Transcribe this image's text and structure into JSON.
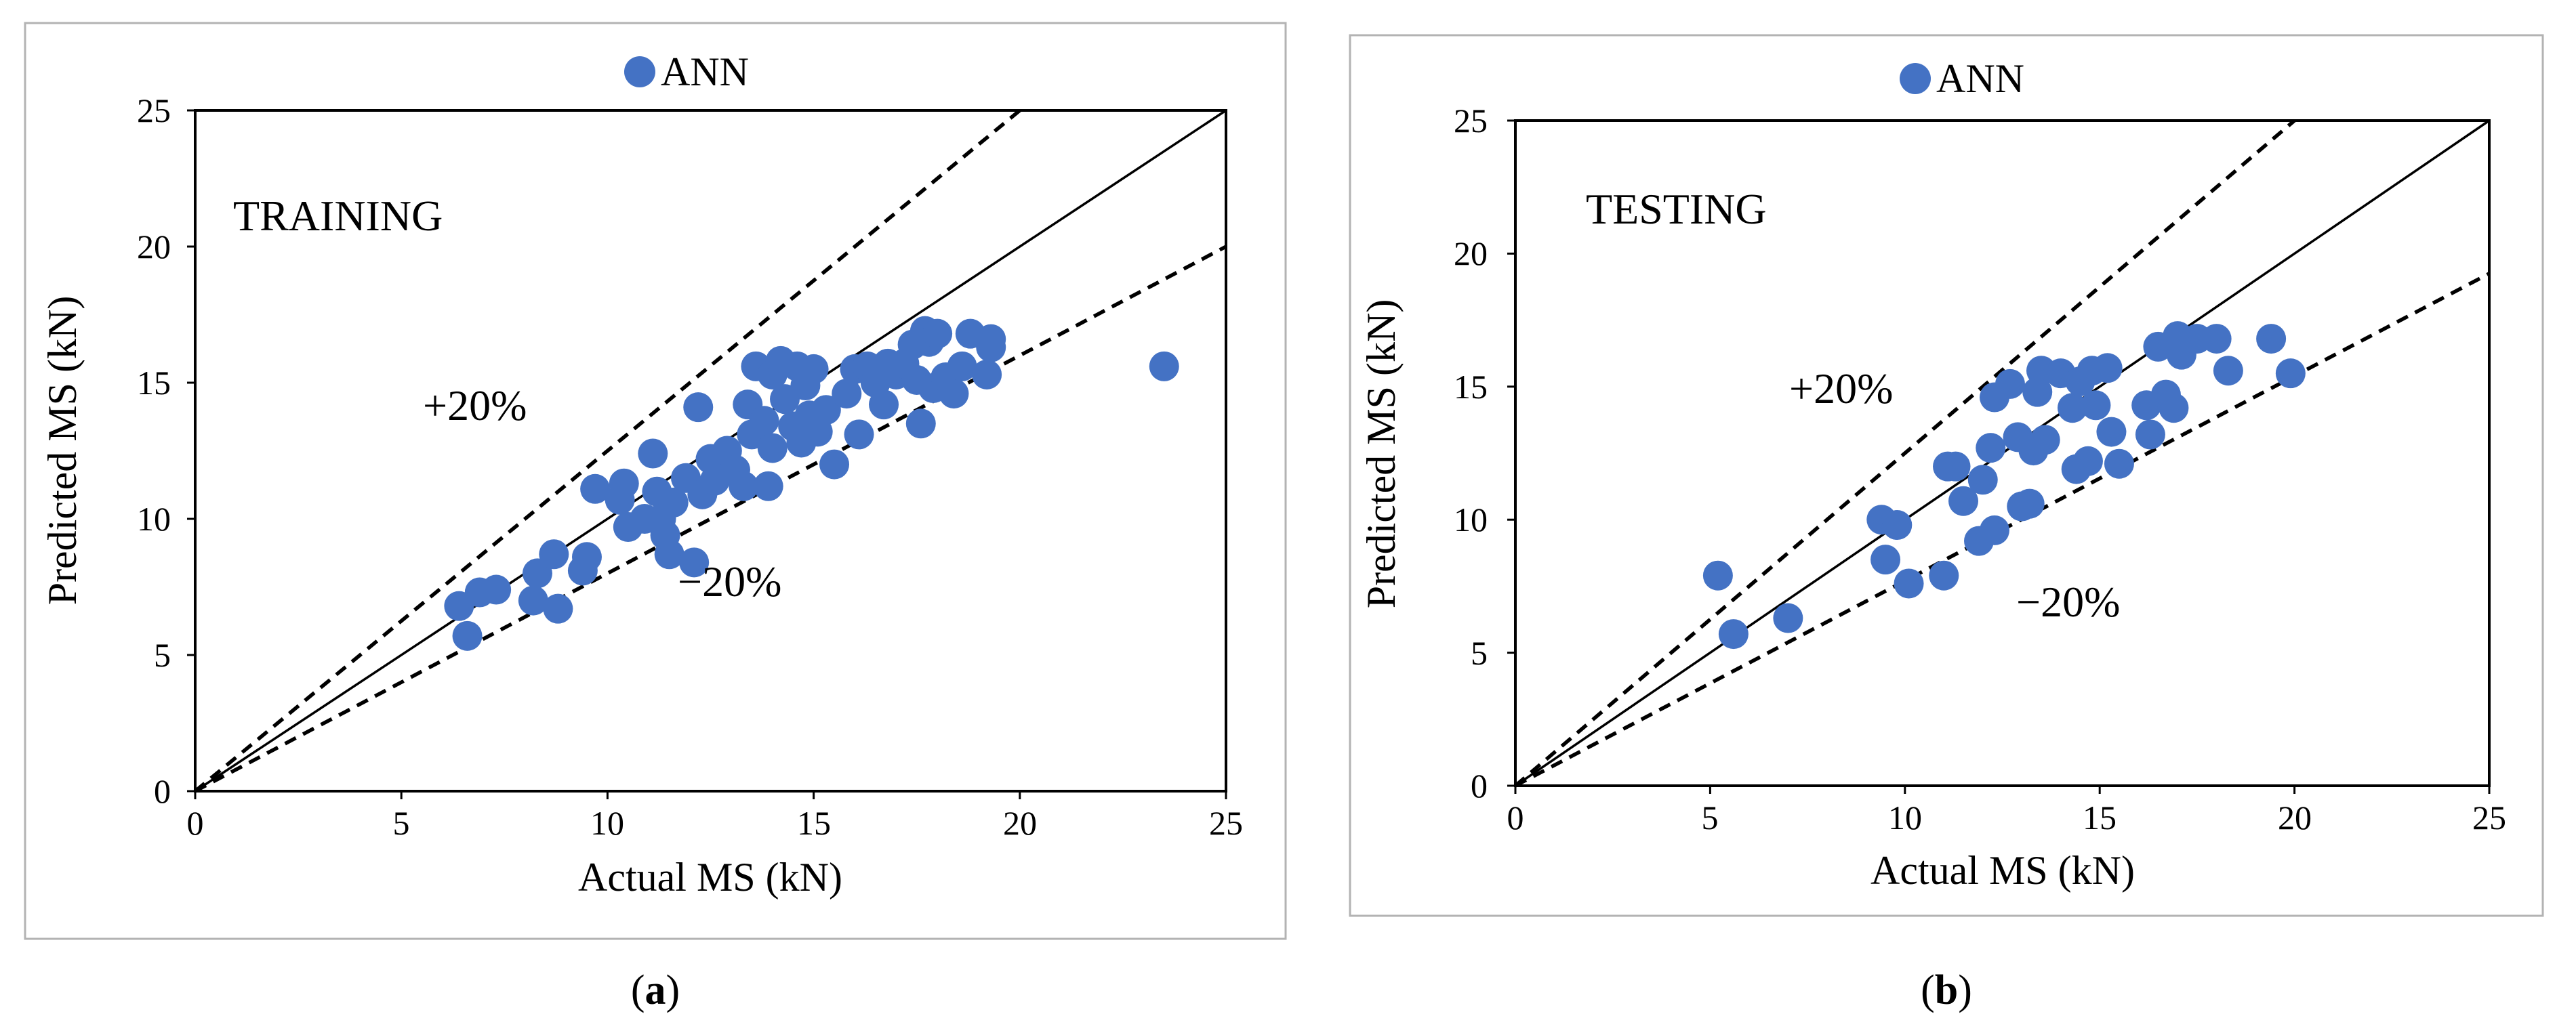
{
  "colors": {
    "marker": "#4472C4",
    "frame": "#b3b3b3",
    "axis": "#000000"
  },
  "chart_data": [
    {
      "type": "scatter",
      "panel": "a",
      "caption": {
        "open": "(",
        "letter": "a",
        "close": ")"
      },
      "title": "TRAINING",
      "xlabel": "Actual MS (kN)",
      "ylabel": "Predicted MS (kN)",
      "xlim": [
        0,
        25
      ],
      "ylim": [
        0,
        25
      ],
      "xticks": [
        "0",
        "5",
        "10",
        "15",
        "20",
        "25"
      ],
      "yticks": [
        "0",
        "5",
        "10",
        "15",
        "20",
        "25"
      ],
      "legend": "ANN",
      "annotations": {
        "plus": "+20%",
        "minus": "−20%"
      },
      "lines": [
        {
          "name": "1:1",
          "slope": 1.0,
          "style": "solid"
        },
        {
          "name": "+20%",
          "slope": 1.25,
          "style": "dashed"
        },
        {
          "name": "-20%",
          "slope": 0.8,
          "style": "dashed"
        }
      ],
      "series": [
        {
          "name": "ANN",
          "points": [
            [
              6.4,
              6.8
            ],
            [
              6.6,
              5.7
            ],
            [
              6.9,
              7.3
            ],
            [
              7.3,
              7.4
            ],
            [
              8.2,
              7.0
            ],
            [
              8.3,
              8.0
            ],
            [
              8.7,
              8.7
            ],
            [
              8.8,
              6.7
            ],
            [
              9.4,
              8.1
            ],
            [
              9.5,
              8.6
            ],
            [
              9.7,
              11.1
            ],
            [
              10.3,
              10.7
            ],
            [
              10.4,
              11.3
            ],
            [
              10.5,
              9.7
            ],
            [
              10.9,
              10.0
            ],
            [
              11.1,
              12.4
            ],
            [
              11.2,
              11.0
            ],
            [
              11.3,
              10.0
            ],
            [
              11.4,
              9.4
            ],
            [
              11.5,
              8.7
            ],
            [
              11.6,
              10.6
            ],
            [
              11.9,
              11.5
            ],
            [
              12.1,
              8.4
            ],
            [
              12.2,
              14.1
            ],
            [
              12.3,
              10.9
            ],
            [
              12.5,
              12.2
            ],
            [
              12.6,
              11.4
            ],
            [
              12.9,
              12.5
            ],
            [
              13.1,
              11.8
            ],
            [
              13.3,
              11.2
            ],
            [
              13.4,
              14.2
            ],
            [
              13.5,
              13.1
            ],
            [
              13.6,
              15.6
            ],
            [
              13.8,
              13.6
            ],
            [
              13.9,
              11.2
            ],
            [
              14.0,
              12.6
            ],
            [
              14.0,
              15.3
            ],
            [
              14.2,
              15.8
            ],
            [
              14.3,
              14.4
            ],
            [
              14.5,
              13.4
            ],
            [
              14.6,
              15.6
            ],
            [
              14.7,
              12.8
            ],
            [
              14.8,
              14.9
            ],
            [
              14.9,
              13.8
            ],
            [
              15.0,
              15.5
            ],
            [
              15.1,
              13.2
            ],
            [
              15.3,
              14.0
            ],
            [
              15.5,
              12.0
            ],
            [
              15.8,
              14.6
            ],
            [
              16.0,
              15.5
            ],
            [
              16.1,
              13.1
            ],
            [
              16.3,
              15.6
            ],
            [
              16.5,
              15.0
            ],
            [
              16.7,
              14.2
            ],
            [
              16.8,
              15.7
            ],
            [
              17.0,
              15.3
            ],
            [
              17.2,
              15.7
            ],
            [
              17.4,
              16.4
            ],
            [
              17.5,
              15.1
            ],
            [
              17.6,
              13.5
            ],
            [
              17.7,
              16.9
            ],
            [
              17.8,
              16.5
            ],
            [
              17.9,
              14.8
            ],
            [
              18.0,
              16.8
            ],
            [
              18.2,
              15.2
            ],
            [
              18.4,
              14.6
            ],
            [
              18.6,
              15.6
            ],
            [
              18.8,
              16.8
            ],
            [
              19.2,
              15.3
            ],
            [
              19.3,
              16.3
            ],
            [
              19.3,
              16.6
            ],
            [
              23.5,
              15.6
            ]
          ]
        }
      ]
    },
    {
      "type": "scatter",
      "panel": "b",
      "caption": {
        "open": "(",
        "letter": "b",
        "close": ")"
      },
      "title": "TESTING",
      "xlabel": "Actual MS (kN)",
      "ylabel": "Predicted MS (kN)",
      "xlim": [
        0,
        25
      ],
      "ylim": [
        0,
        25
      ],
      "xticks": [
        "0",
        "5",
        "10",
        "15",
        "20",
        "25"
      ],
      "yticks": [
        "0",
        "5",
        "10",
        "15",
        "20",
        "25"
      ],
      "legend": "ANN",
      "annotations": {
        "plus": "+20%",
        "minus": "−20%"
      },
      "lines": [
        {
          "name": "1:1",
          "slope": 1.0,
          "style": "solid"
        },
        {
          "name": "+20%",
          "slope": 1.25,
          "style": "dashed"
        },
        {
          "name": "-20%",
          "slope": 0.77,
          "style": "dashed"
        }
      ],
      "series": [
        {
          "name": "ANN",
          "points": [
            [
              5.2,
              7.9
            ],
            [
              5.6,
              5.7
            ],
            [
              7.0,
              6.3
            ],
            [
              9.4,
              10.0
            ],
            [
              9.5,
              8.5
            ],
            [
              9.8,
              9.8
            ],
            [
              10.1,
              7.6
            ],
            [
              11.0,
              7.9
            ],
            [
              11.1,
              12.0
            ],
            [
              11.3,
              12.0
            ],
            [
              11.5,
              10.7
            ],
            [
              11.9,
              9.2
            ],
            [
              12.0,
              11.5
            ],
            [
              12.2,
              12.7
            ],
            [
              12.3,
              9.6
            ],
            [
              12.3,
              14.6
            ],
            [
              12.7,
              15.1
            ],
            [
              12.9,
              13.1
            ],
            [
              13.0,
              10.5
            ],
            [
              13.2,
              10.6
            ],
            [
              13.3,
              12.6
            ],
            [
              13.4,
              14.8
            ],
            [
              13.5,
              15.6
            ],
            [
              13.6,
              13.0
            ],
            [
              14.0,
              15.5
            ],
            [
              14.3,
              14.2
            ],
            [
              14.4,
              11.9
            ],
            [
              14.5,
              15.2
            ],
            [
              14.7,
              12.2
            ],
            [
              14.8,
              15.6
            ],
            [
              14.9,
              14.3
            ],
            [
              15.2,
              15.7
            ],
            [
              15.3,
              13.3
            ],
            [
              15.5,
              12.1
            ],
            [
              16.2,
              14.3
            ],
            [
              16.3,
              13.2
            ],
            [
              16.5,
              16.5
            ],
            [
              16.7,
              14.7
            ],
            [
              16.9,
              14.2
            ],
            [
              17.0,
              16.9
            ],
            [
              17.1,
              16.2
            ],
            [
              17.5,
              16.8
            ],
            [
              18.0,
              16.8
            ],
            [
              18.3,
              15.6
            ],
            [
              19.4,
              16.8
            ],
            [
              19.9,
              15.5
            ]
          ]
        }
      ]
    }
  ]
}
